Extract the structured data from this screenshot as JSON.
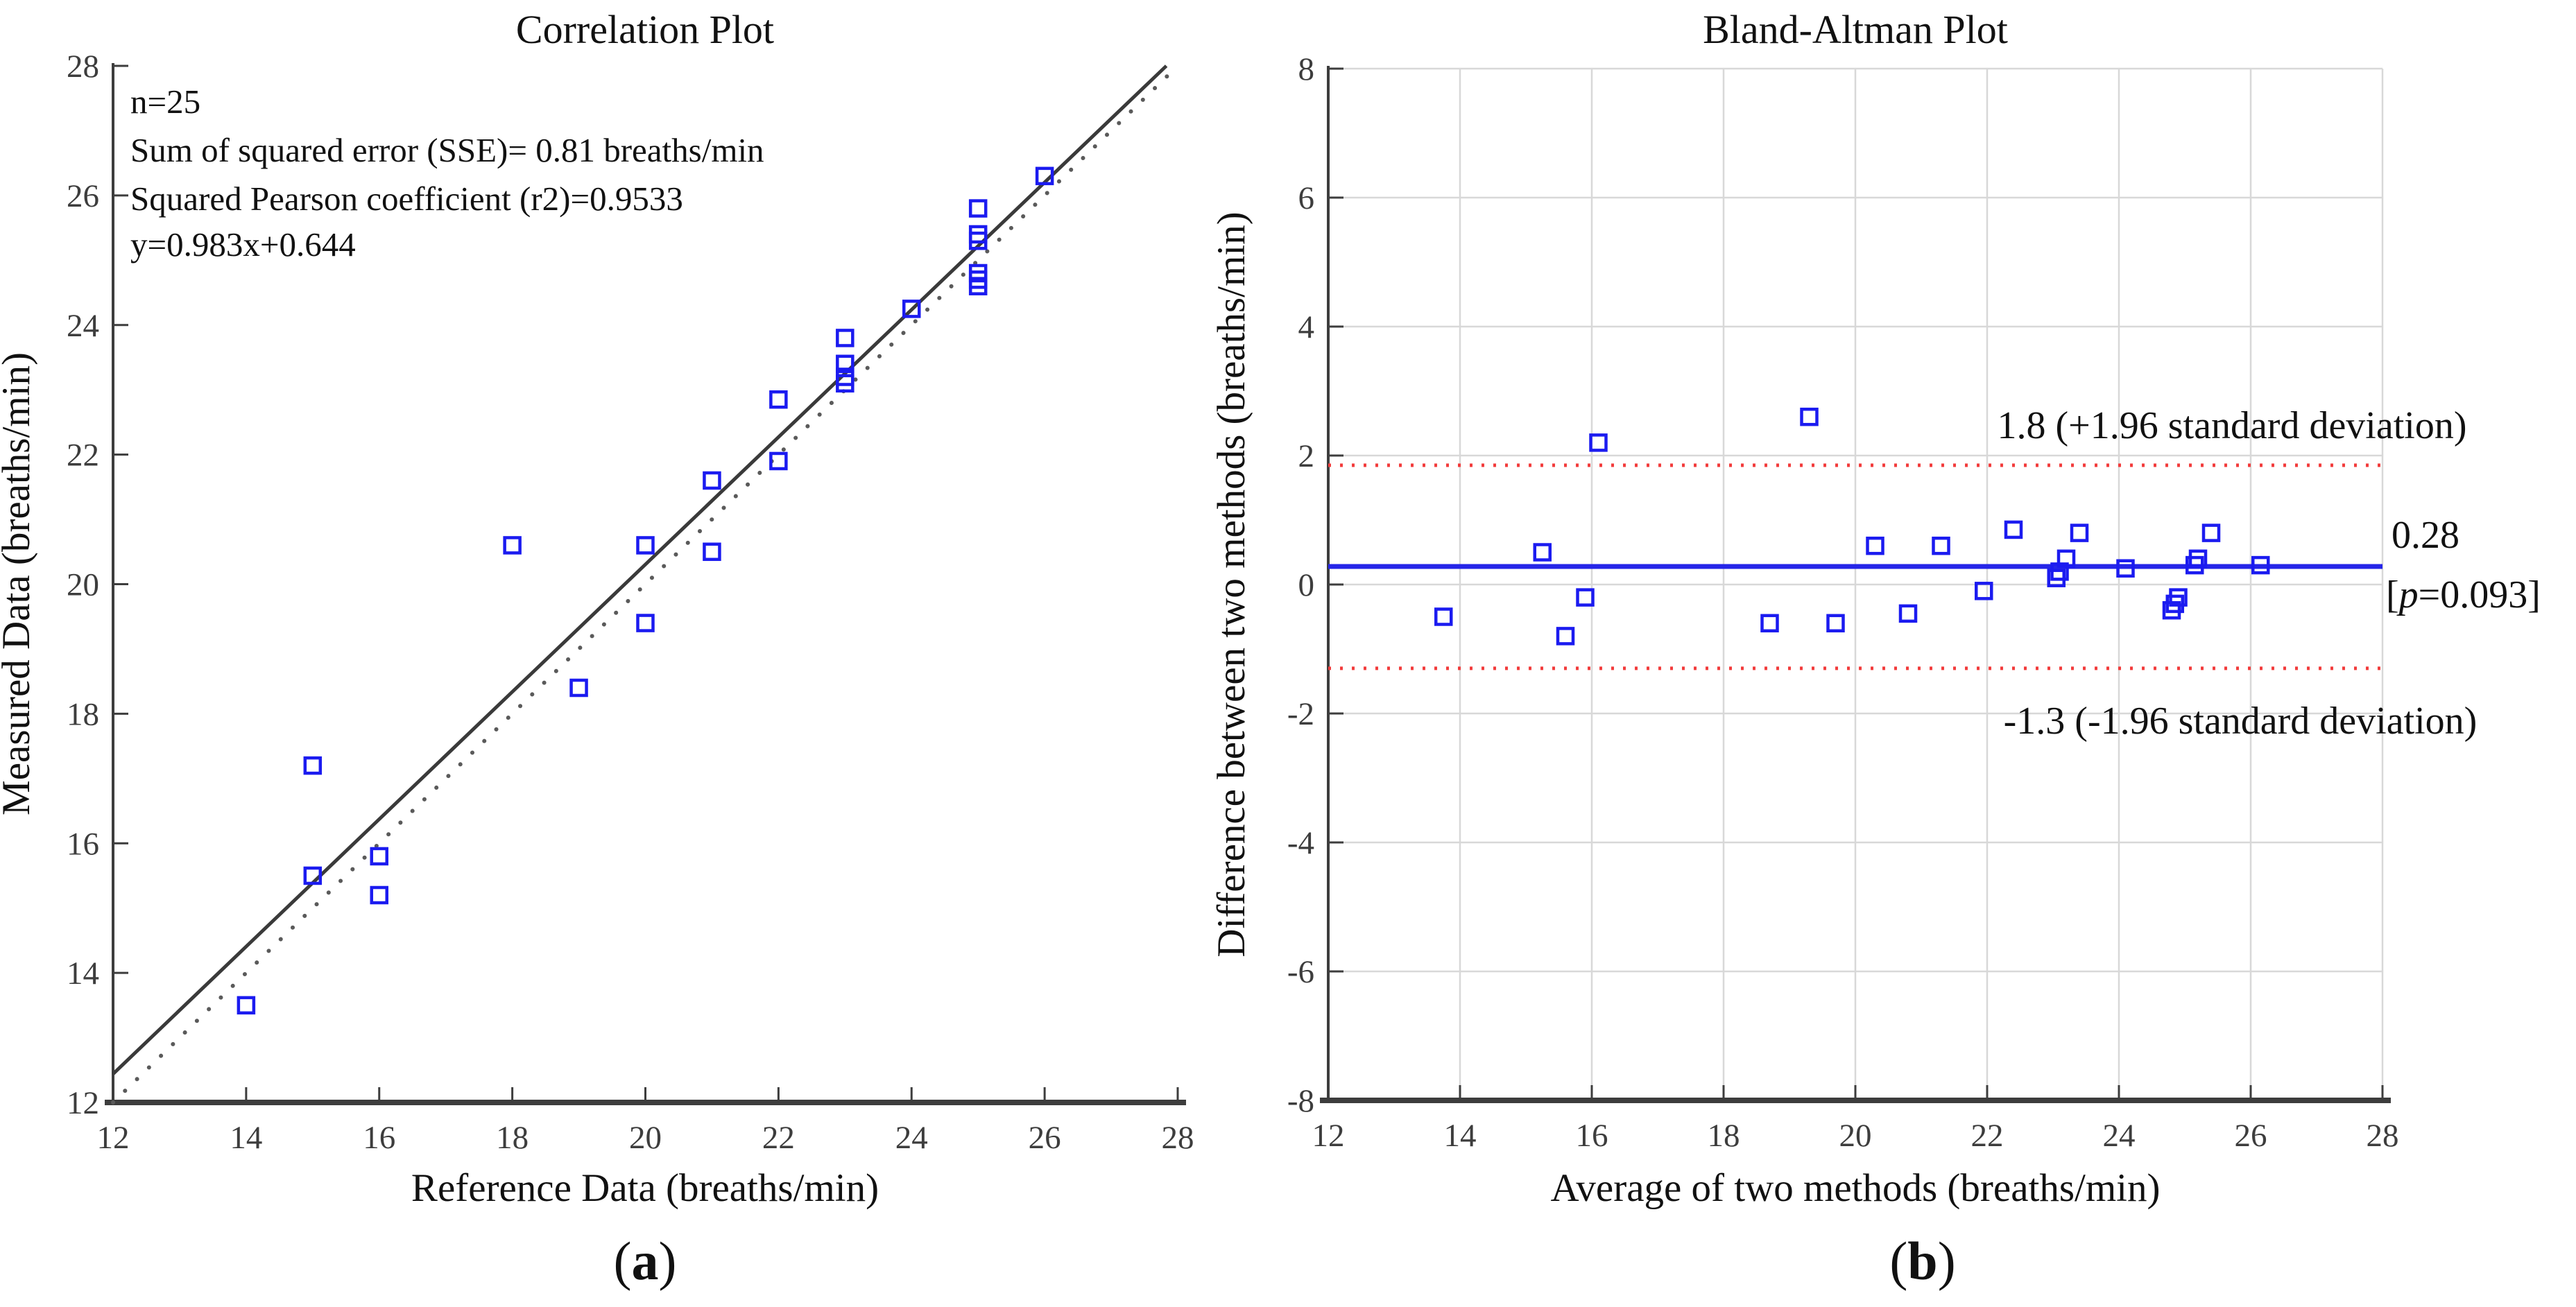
{
  "figure": {
    "background_color": "#ffffff",
    "marker_color": "#1b1bf0",
    "regression_line_color": "#3a3a3a",
    "identity_line_color": "#5a5a5a",
    "mean_line_color": "#2525e8",
    "loa_line_color": "#f23b3b",
    "grid_color": "#d8d8d8",
    "axis_color": "#3d3d3d"
  },
  "chart_data": [
    {
      "type": "scatter",
      "title": "Correlation Plot",
      "xlabel": "Reference Data (breaths/min)",
      "ylabel": "Measured Data (breaths/min)",
      "xlim": [
        12,
        28
      ],
      "ylim": [
        12,
        28
      ],
      "xticks": [
        12,
        14,
        16,
        18,
        20,
        22,
        24,
        26,
        28
      ],
      "yticks": [
        12,
        14,
        16,
        18,
        20,
        22,
        24,
        26,
        28
      ],
      "grid": false,
      "legend_position": "none",
      "annotation_lines": [
        "n=25",
        "Sum of squared error (SSE)= 0.81 breaths/min",
        "Squared Pearson coefficient (r2)=0.9533",
        "y=0.983x+0.644"
      ],
      "points": [
        [
          14,
          13.5
        ],
        [
          15,
          17.2
        ],
        [
          15,
          15.5
        ],
        [
          16,
          15.8
        ],
        [
          16,
          15.2
        ],
        [
          18,
          20.6
        ],
        [
          19,
          18.4
        ],
        [
          20,
          20.6
        ],
        [
          20,
          19.4
        ],
        [
          21,
          21.6
        ],
        [
          21,
          20.5
        ],
        [
          22,
          22.85
        ],
        [
          22,
          21.9
        ],
        [
          23,
          23.8
        ],
        [
          23,
          23.4
        ],
        [
          23,
          23.2
        ],
        [
          23,
          23.1
        ],
        [
          24,
          24.25
        ],
        [
          25,
          25.8
        ],
        [
          25,
          25.4
        ],
        [
          25,
          25.3
        ],
        [
          25,
          24.8
        ],
        [
          25,
          24.7
        ],
        [
          25,
          24.6
        ],
        [
          26,
          26.3
        ]
      ],
      "fit_line": {
        "slope": 0.983,
        "intercept": 0.644,
        "equation": "y=0.983x+0.644"
      },
      "identity_line": true,
      "caption_parts": {
        "open": "(",
        "letter": "a",
        "close": ")"
      }
    },
    {
      "type": "scatter",
      "title": "Bland-Altman Plot",
      "xlabel": "Average of two methods (breaths/min)",
      "ylabel": "Difference between two methods (breaths/min)",
      "xlim": [
        12,
        28
      ],
      "ylim": [
        -8,
        8
      ],
      "xticks": [
        12,
        14,
        16,
        18,
        20,
        22,
        24,
        26,
        28
      ],
      "yticks": [
        -8,
        -6,
        -4,
        -2,
        0,
        2,
        4,
        6,
        8
      ],
      "grid": true,
      "legend_position": "none",
      "points": [
        [
          13.75,
          -0.5
        ],
        [
          15.25,
          0.5
        ],
        [
          15.6,
          -0.8
        ],
        [
          15.9,
          -0.2
        ],
        [
          16.1,
          2.2
        ],
        [
          18.7,
          -0.6
        ],
        [
          19.3,
          2.6
        ],
        [
          19.7,
          -0.6
        ],
        [
          20.3,
          0.6
        ],
        [
          20.8,
          -0.45
        ],
        [
          21.3,
          0.6
        ],
        [
          21.95,
          -0.1
        ],
        [
          22.4,
          0.85
        ],
        [
          23.05,
          0.1
        ],
        [
          23.1,
          0.2
        ],
        [
          23.2,
          0.4
        ],
        [
          23.4,
          0.8
        ],
        [
          24.1,
          0.25
        ],
        [
          24.8,
          -0.4
        ],
        [
          24.85,
          -0.3
        ],
        [
          24.9,
          -0.2
        ],
        [
          25.15,
          0.3
        ],
        [
          25.2,
          0.4
        ],
        [
          25.4,
          0.8
        ],
        [
          26.15,
          0.3
        ]
      ],
      "mean_line": {
        "value": 0.28,
        "label": "0.28",
        "p_parts": {
          "open": "[",
          "p": "p",
          "rest": "=0.093]"
        }
      },
      "upper_loa": {
        "value": 1.85,
        "label": "1.8 (+1.96 standard deviation)"
      },
      "lower_loa": {
        "value": -1.3,
        "label": "-1.3 (-1.96 standard deviation)"
      },
      "caption_parts": {
        "open": "(",
        "letter": "b",
        "close": ")"
      }
    }
  ]
}
